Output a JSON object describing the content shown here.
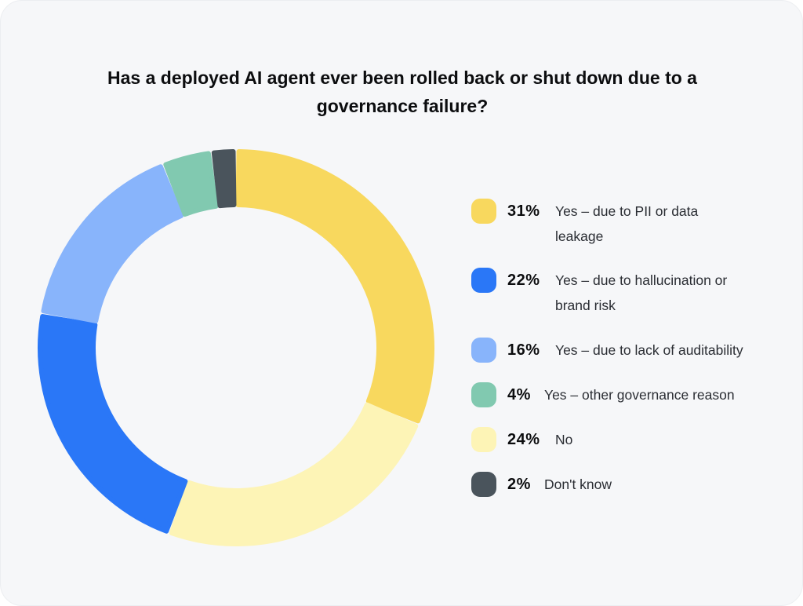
{
  "chart_data": {
    "type": "pie",
    "title": "Has a deployed AI agent ever been rolled back or shut down due to a governance failure?",
    "slices": [
      {
        "label": "Yes – due to PII or data leakage",
        "value": 31,
        "value_label": "31%",
        "color": "#f8d85e"
      },
      {
        "label": "No",
        "value": 24,
        "value_label": "24%",
        "color": "#fdf4b6"
      },
      {
        "label": "Yes – due to hallucination or brand risk",
        "value": 22,
        "value_label": "22%",
        "color": "#2a77f7"
      },
      {
        "label": "Yes – due to lack of auditability",
        "value": 16,
        "value_label": "16%",
        "color": "#88b4fb"
      },
      {
        "label": "Yes – other governance reason",
        "value": 4,
        "value_label": "4%",
        "color": "#81c9b0"
      },
      {
        "label": "Don't know",
        "value": 2,
        "value_label": "2%",
        "color": "#4a545c"
      }
    ],
    "legend": [
      {
        "pct": "31%",
        "label_line1": "Yes – due to PII or data",
        "label_line2": "leakage",
        "color": "#f8d85e"
      },
      {
        "pct": "22%",
        "label_line1": "Yes – due to hallucination or",
        "label_line2": "brand risk",
        "color": "#2a77f7"
      },
      {
        "pct": "16%",
        "label_line1": "Yes – due to lack of auditability",
        "label_line2": "",
        "color": "#88b4fb"
      },
      {
        "pct": "4%",
        "label_line1": "Yes – other governance reason",
        "label_line2": "",
        "color": "#81c9b0"
      },
      {
        "pct": "24%",
        "label_line1": "No",
        "label_line2": "",
        "color": "#fdf4b6"
      },
      {
        "pct": "2%",
        "label_line1": "Don't know",
        "label_line2": "",
        "color": "#4a545c"
      }
    ],
    "legend_position": "right"
  }
}
